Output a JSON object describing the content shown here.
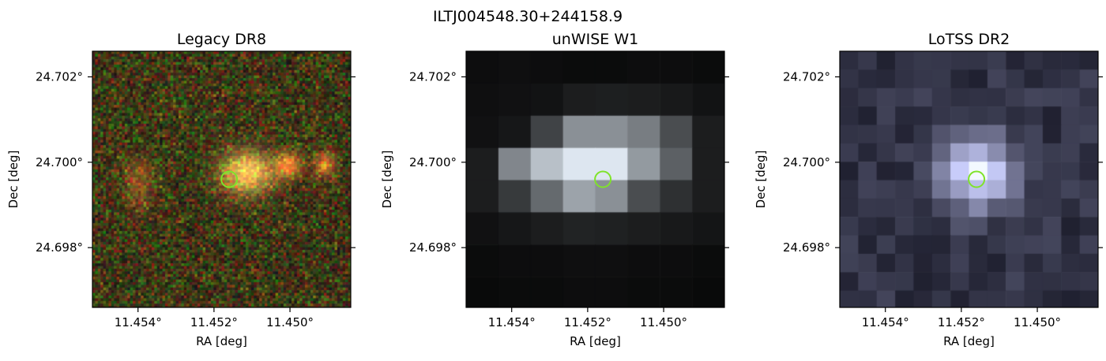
{
  "figure": {
    "title": "ILTJ004548.30+244158.9"
  },
  "panels": [
    {
      "title": "Legacy DR8",
      "image": "optical RGB cutout",
      "xlabel": "RA [deg]",
      "ylabel": "Dec [deg]",
      "xticks": [
        11.454,
        11.452,
        11.45
      ],
      "xticklabels": [
        "11.454°",
        "11.452°",
        "11.450°"
      ],
      "yticks": [
        24.702,
        24.7,
        24.698
      ],
      "yticklabels": [
        "24.702°",
        "24.700°",
        "24.698°"
      ],
      "xlim": [
        11.4552,
        11.4484
      ],
      "ylim": [
        24.6966,
        24.7026
      ],
      "marker": {
        "ra": 11.4516,
        "dec": 24.6996,
        "color": "#7fe32a"
      }
    },
    {
      "title": "unWISE W1",
      "image": "infrared grayscale cutout",
      "xlabel": "RA [deg]",
      "ylabel": "Dec [deg]",
      "xticks": [
        11.454,
        11.452,
        11.45
      ],
      "xticklabels": [
        "11.454°",
        "11.452°",
        "11.450°"
      ],
      "yticks": [
        24.702,
        24.7,
        24.698
      ],
      "yticklabels": [
        "24.702°",
        "24.700°",
        "24.698°"
      ],
      "xlim": [
        11.4552,
        11.4484
      ],
      "ylim": [
        24.6966,
        24.7026
      ],
      "marker": {
        "ra": 11.4516,
        "dec": 24.6996,
        "color": "#7fe32a"
      }
    },
    {
      "title": "LoTSS DR2",
      "image": "radio grayscale cutout",
      "xlabel": "RA [deg]",
      "ylabel": "Dec [deg]",
      "xticks": [
        11.454,
        11.452,
        11.45
      ],
      "xticklabels": [
        "11.454°",
        "11.452°",
        "11.450°"
      ],
      "yticks": [
        24.702,
        24.7,
        24.698
      ],
      "yticklabels": [
        "24.702°",
        "24.700°",
        "24.698°"
      ],
      "xlim": [
        11.4552,
        11.4484
      ],
      "ylim": [
        24.6966,
        24.7026
      ],
      "marker": {
        "ra": 11.4516,
        "dec": 24.6996,
        "color": "#7fe32a"
      }
    }
  ]
}
